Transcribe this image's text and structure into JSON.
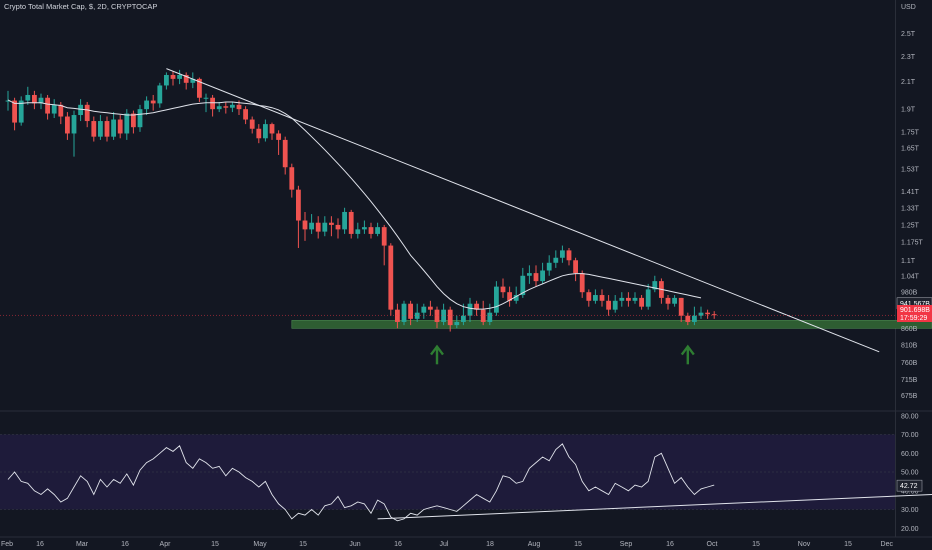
{
  "header": {
    "title": "Crypto Total Market Cap, $, 2D, CRYPTOCAP",
    "currency": "USD"
  },
  "colors": {
    "background": "#131722",
    "up": "#26a69a",
    "down": "#ef5350",
    "support_zone": "#2e5d32",
    "arrow": "#2e7d32",
    "rsi_band": "#1e1b3a",
    "line": "#e0e3eb",
    "price_badge_dark": "#1e222d",
    "price_badge_red": "#f23645"
  },
  "chart_data": [
    {
      "type": "candlestick",
      "title": "Crypto Total Market Cap, $, 2D, CRYPTOCAP",
      "y_unit": "USD",
      "y_scale": "log",
      "y_ticks": [
        {
          "label": "2.5T",
          "value": 2500
        },
        {
          "label": "2.3T",
          "value": 2300
        },
        {
          "label": "2.1T",
          "value": 2100
        },
        {
          "label": "1.9T",
          "value": 1900
        },
        {
          "label": "1.75T",
          "value": 1750
        },
        {
          "label": "1.65T",
          "value": 1650
        },
        {
          "label": "1.53T",
          "value": 1530
        },
        {
          "label": "1.41T",
          "value": 1410
        },
        {
          "label": "1.33T",
          "value": 1330
        },
        {
          "label": "1.25T",
          "value": 1250
        },
        {
          "label": "1.175T",
          "value": 1175
        },
        {
          "label": "1.1T",
          "value": 1100
        },
        {
          "label": "1.04T",
          "value": 1040
        },
        {
          "label": "980B",
          "value": 980
        },
        {
          "label": "860B",
          "value": 860
        },
        {
          "label": "810B",
          "value": 810
        },
        {
          "label": "760B",
          "value": 760
        },
        {
          "label": "715B",
          "value": 715
        },
        {
          "label": "675B",
          "value": 675
        }
      ],
      "x_ticks": [
        "Feb",
        "16",
        "Mar",
        "16",
        "Apr",
        "15",
        "May",
        "15",
        "Jun",
        "16",
        "Jul",
        "18",
        "Aug",
        "15",
        "Sep",
        "16",
        "Oct",
        "15",
        "Nov",
        "15",
        "Dec"
      ],
      "price_labels": [
        "941.567B",
        "901.698B",
        "17:59:29"
      ],
      "candles": [
        [
          1960,
          1960,
          2030,
          1890
        ],
        [
          1960,
          1810,
          1980,
          1760
        ],
        [
          1810,
          1960,
          1990,
          1790
        ],
        [
          1960,
          2000,
          2060,
          1930
        ],
        [
          2000,
          1940,
          2030,
          1900
        ],
        [
          1940,
          1980,
          2010,
          1900
        ],
        [
          1980,
          1870,
          2000,
          1830
        ],
        [
          1870,
          1930,
          1970,
          1840
        ],
        [
          1930,
          1850,
          1950,
          1800
        ],
        [
          1850,
          1740,
          1880,
          1700
        ],
        [
          1740,
          1860,
          1890,
          1600
        ],
        [
          1860,
          1930,
          1970,
          1820
        ],
        [
          1930,
          1820,
          1950,
          1780
        ],
        [
          1820,
          1720,
          1850,
          1690
        ],
        [
          1720,
          1820,
          1860,
          1700
        ],
        [
          1820,
          1720,
          1850,
          1690
        ],
        [
          1720,
          1830,
          1880,
          1700
        ],
        [
          1830,
          1740,
          1860,
          1710
        ],
        [
          1740,
          1870,
          1900,
          1700
        ],
        [
          1870,
          1780,
          1890,
          1740
        ],
        [
          1780,
          1900,
          1930,
          1750
        ],
        [
          1900,
          1960,
          1990,
          1860
        ],
        [
          1960,
          1940,
          2000,
          1890
        ],
        [
          1940,
          2070,
          2090,
          1910
        ],
        [
          2070,
          2150,
          2170,
          2040
        ],
        [
          2150,
          2120,
          2180,
          2070
        ],
        [
          2120,
          2150,
          2190,
          2080
        ],
        [
          2150,
          2090,
          2170,
          2040
        ],
        [
          2090,
          2120,
          2170,
          2050
        ],
        [
          2120,
          1980,
          2130,
          1950
        ],
        [
          1980,
          1980,
          2010,
          1880
        ],
        [
          1980,
          1900,
          2000,
          1850
        ],
        [
          1900,
          1920,
          1950,
          1880
        ],
        [
          1920,
          1910,
          1950,
          1870
        ],
        [
          1910,
          1930,
          1950,
          1880
        ],
        [
          1930,
          1900,
          1960,
          1860
        ],
        [
          1900,
          1830,
          1920,
          1800
        ],
        [
          1830,
          1770,
          1850,
          1740
        ],
        [
          1770,
          1710,
          1800,
          1680
        ],
        [
          1710,
          1800,
          1830,
          1690
        ],
        [
          1800,
          1740,
          1810,
          1700
        ],
        [
          1740,
          1700,
          1760,
          1610
        ],
        [
          1700,
          1540,
          1720,
          1500
        ],
        [
          1540,
          1420,
          1560,
          1380
        ],
        [
          1420,
          1270,
          1440,
          1150
        ],
        [
          1270,
          1230,
          1310,
          1180
        ],
        [
          1230,
          1260,
          1300,
          1210
        ],
        [
          1260,
          1220,
          1290,
          1190
        ],
        [
          1220,
          1260,
          1290,
          1200
        ],
        [
          1260,
          1250,
          1290,
          1200
        ],
        [
          1250,
          1230,
          1280,
          1190
        ],
        [
          1230,
          1310,
          1330,
          1210
        ],
        [
          1310,
          1210,
          1320,
          1190
        ],
        [
          1210,
          1230,
          1260,
          1190
        ],
        [
          1230,
          1240,
          1270,
          1210
        ],
        [
          1240,
          1210,
          1260,
          1190
        ],
        [
          1210,
          1240,
          1260,
          1200
        ],
        [
          1240,
          1160,
          1250,
          1080
        ],
        [
          1160,
          920,
          1170,
          900
        ],
        [
          920,
          880,
          940,
          860
        ],
        [
          880,
          940,
          950,
          870
        ],
        [
          940,
          890,
          950,
          870
        ],
        [
          890,
          910,
          940,
          880
        ],
        [
          910,
          930,
          940,
          890
        ],
        [
          930,
          920,
          950,
          900
        ],
        [
          920,
          880,
          930,
          860
        ],
        [
          880,
          920,
          940,
          870
        ],
        [
          920,
          870,
          930,
          850
        ],
        [
          870,
          880,
          900,
          860
        ],
        [
          880,
          900,
          940,
          870
        ],
        [
          900,
          940,
          960,
          880
        ],
        [
          940,
          920,
          950,
          900
        ],
        [
          920,
          880,
          950,
          870
        ],
        [
          880,
          910,
          940,
          870
        ],
        [
          910,
          1000,
          1020,
          900
        ],
        [
          1000,
          980,
          1030,
          960
        ],
        [
          980,
          950,
          1000,
          930
        ],
        [
          950,
          970,
          1000,
          940
        ],
        [
          970,
          1040,
          1070,
          960
        ],
        [
          1040,
          1050,
          1080,
          1010
        ],
        [
          1050,
          1020,
          1080,
          1000
        ],
        [
          1020,
          1060,
          1090,
          1010
        ],
        [
          1060,
          1090,
          1120,
          1040
        ],
        [
          1090,
          1110,
          1140,
          1070
        ],
        [
          1110,
          1140,
          1160,
          1090
        ],
        [
          1140,
          1100,
          1150,
          1080
        ],
        [
          1100,
          1050,
          1110,
          1020
        ],
        [
          1050,
          980,
          1060,
          960
        ],
        [
          980,
          950,
          990,
          930
        ],
        [
          950,
          970,
          990,
          940
        ],
        [
          970,
          950,
          990,
          930
        ],
        [
          950,
          920,
          970,
          900
        ],
        [
          920,
          950,
          970,
          910
        ],
        [
          950,
          960,
          980,
          930
        ],
        [
          960,
          950,
          980,
          930
        ],
        [
          950,
          960,
          980,
          940
        ],
        [
          960,
          930,
          970,
          920
        ],
        [
          930,
          990,
          1010,
          920
        ],
        [
          990,
          1020,
          1040,
          980
        ],
        [
          1020,
          960,
          1030,
          940
        ],
        [
          960,
          940,
          970,
          920
        ],
        [
          940,
          960,
          970,
          930
        ],
        [
          960,
          900,
          960,
          880
        ],
        [
          900,
          880,
          910,
          870
        ],
        [
          880,
          900,
          930,
          870
        ],
        [
          900,
          910,
          930,
          890
        ],
        [
          910,
          905,
          920,
          890
        ],
        [
          905,
          902,
          915,
          890
        ]
      ],
      "moving_average": [
        1965,
        1940,
        1940,
        1945,
        1945,
        1945,
        1935,
        1930,
        1925,
        1910,
        1905,
        1900,
        1895,
        1885,
        1880,
        1875,
        1870,
        1865,
        1860,
        1860,
        1865,
        1870,
        1875,
        1885,
        1895,
        1905,
        1915,
        1925,
        1935,
        1940,
        1945,
        1945,
        1945,
        1950,
        1950,
        1945,
        1940,
        1935,
        1925,
        1920,
        1910,
        1895,
        1870,
        1840,
        1800,
        1760,
        1720,
        1680,
        1640,
        1600,
        1560,
        1520,
        1480,
        1440,
        1400,
        1360,
        1320,
        1280,
        1240,
        1200,
        1160,
        1120,
        1090,
        1060,
        1030,
        1000,
        975,
        955,
        940,
        930,
        925,
        922,
        922,
        925,
        930,
        940,
        952,
        965,
        978,
        990,
        1000,
        1010,
        1020,
        1030,
        1040,
        1045,
        1048,
        1048,
        1045,
        1040,
        1035,
        1030,
        1025,
        1020,
        1015,
        1010,
        1005,
        1000,
        995,
        990,
        985,
        980,
        975,
        970,
        965,
        960
      ],
      "trendline": {
        "from": {
          "t": 24,
          "value": 2200
        },
        "to": {
          "t": 132,
          "value": 790
        }
      },
      "support_zone": {
        "from_t": 43,
        "to_t": 140,
        "value_low": 860,
        "value_high": 885
      }
    },
    {
      "type": "line",
      "title": "RSI",
      "y_ticks": [
        80,
        70,
        60,
        50,
        40,
        30,
        20
      ],
      "y_tick_labels": [
        "80.00",
        "70.00",
        "60.00",
        "50.00",
        "40.00",
        "30.00",
        "20.00"
      ],
      "current_label": "42.72",
      "band": [
        30,
        70
      ],
      "values": [
        46,
        50,
        45,
        44,
        40,
        38,
        41,
        38,
        34,
        36,
        42,
        48,
        45,
        38,
        46,
        42,
        46,
        44,
        49,
        43,
        51,
        55,
        57,
        60,
        63,
        61,
        64,
        55,
        52,
        57,
        55,
        52,
        53,
        48,
        52,
        50,
        47,
        45,
        42,
        45,
        38,
        33,
        30,
        25,
        28,
        27,
        30,
        27,
        32,
        33,
        37,
        31,
        32,
        34,
        33,
        28,
        35,
        33,
        26,
        24,
        25,
        28,
        27,
        30,
        31,
        32,
        31,
        30,
        29,
        32,
        35,
        38,
        36,
        34,
        40,
        48,
        47,
        44,
        45,
        52,
        55,
        58,
        56,
        62,
        65,
        58,
        54,
        45,
        40,
        42,
        40,
        38,
        44,
        42,
        40,
        43,
        42,
        45,
        58,
        60,
        52,
        44,
        47,
        42,
        38,
        41,
        42,
        43
      ],
      "trendline": {
        "from": {
          "t": 56,
          "value": 25
        },
        "to": {
          "t": 140,
          "value": 38
        }
      }
    }
  ]
}
